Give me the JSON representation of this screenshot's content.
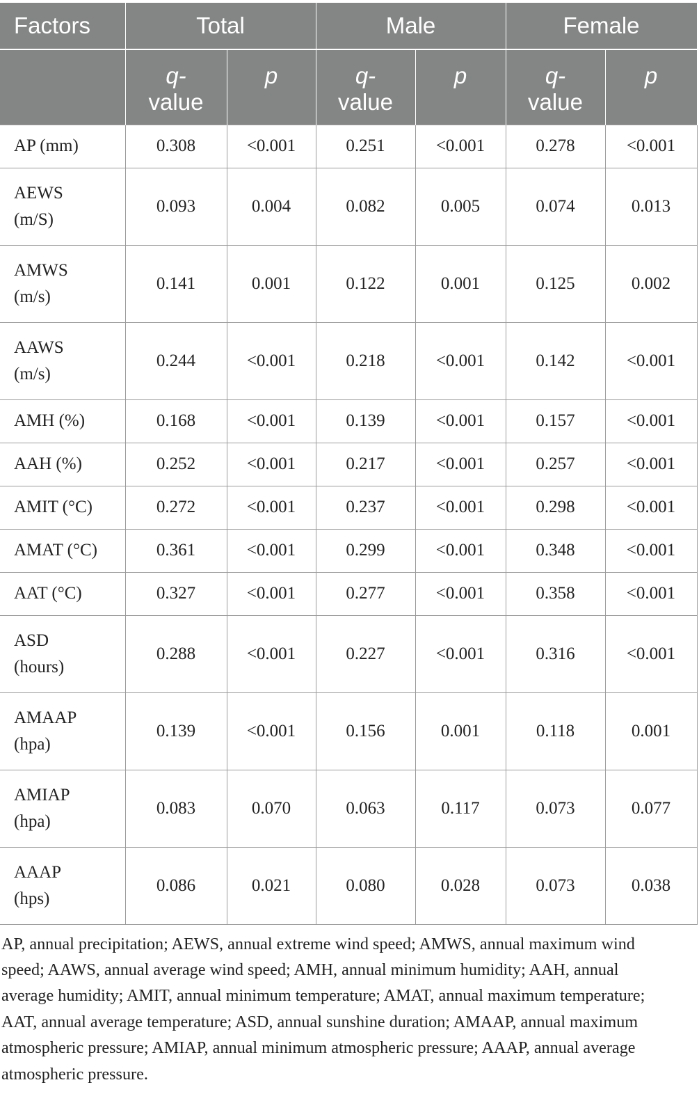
{
  "header": {
    "factors": "Factors",
    "groups": [
      "Total",
      "Male",
      "Female"
    ],
    "q_value_line1": "q-",
    "q_value_line2": "value",
    "p": "p"
  },
  "rows": [
    {
      "factor_line1": "AP (mm)",
      "factor_line2": "",
      "values": [
        "0.308",
        "<0.001",
        "0.251",
        "<0.001",
        "0.278",
        "<0.001"
      ]
    },
    {
      "factor_line1": "AEWS",
      "factor_line2": "(m/S)",
      "values": [
        "0.093",
        "0.004",
        "0.082",
        "0.005",
        "0.074",
        "0.013"
      ]
    },
    {
      "factor_line1": "AMWS",
      "factor_line2": "(m/s)",
      "values": [
        "0.141",
        "0.001",
        "0.122",
        "0.001",
        "0.125",
        "0.002"
      ]
    },
    {
      "factor_line1": "AAWS",
      "factor_line2": "(m/s)",
      "values": [
        "0.244",
        "<0.001",
        "0.218",
        "<0.001",
        "0.142",
        "<0.001"
      ]
    },
    {
      "factor_line1": "AMH (%)",
      "factor_line2": "",
      "values": [
        "0.168",
        "<0.001",
        "0.139",
        "<0.001",
        "0.157",
        "<0.001"
      ]
    },
    {
      "factor_line1": "AAH (%)",
      "factor_line2": "",
      "values": [
        "0.252",
        "<0.001",
        "0.217",
        "<0.001",
        "0.257",
        "<0.001"
      ]
    },
    {
      "factor_line1": "AMIT (°C)",
      "factor_line2": "",
      "values": [
        "0.272",
        "<0.001",
        "0.237",
        "<0.001",
        "0.298",
        "<0.001"
      ]
    },
    {
      "factor_line1": "AMAT (°C)",
      "factor_line2": "",
      "values": [
        "0.361",
        "<0.001",
        "0.299",
        "<0.001",
        "0.348",
        "<0.001"
      ]
    },
    {
      "factor_line1": "AAT (°C)",
      "factor_line2": "",
      "values": [
        "0.327",
        "<0.001",
        "0.277",
        "<0.001",
        "0.358",
        "<0.001"
      ]
    },
    {
      "factor_line1": "ASD",
      "factor_line2": "(hours)",
      "values": [
        "0.288",
        "<0.001",
        "0.227",
        "<0.001",
        "0.316",
        "<0.001"
      ]
    },
    {
      "factor_line1": "AMAAP",
      "factor_line2": "(hpa)",
      "values": [
        "0.139",
        "<0.001",
        "0.156",
        "0.001",
        "0.118",
        "0.001"
      ]
    },
    {
      "factor_line1": "AMIAP",
      "factor_line2": "(hpa)",
      "values": [
        "0.083",
        "0.070",
        "0.063",
        "0.117",
        "0.073",
        "0.077"
      ]
    },
    {
      "factor_line1": "AAAP",
      "factor_line2": "(hps)",
      "values": [
        "0.086",
        "0.021",
        "0.080",
        "0.028",
        "0.073",
        "0.038"
      ]
    }
  ],
  "footnote": "AP, annual precipitation; AEWS, annual extreme wind speed; AMWS, annual maximum wind speed; AAWS, annual average wind speed; AMH, annual minimum humidity; AAH, annual average humidity; AMIT, annual minimum temperature; AMAT, annual maximum temperature; AAT, annual average temperature; ASD, annual sunshine duration; AMAAP, annual maximum atmospheric pressure; AMIAP, annual minimum atmospheric pressure; AAAP, annual average atmospheric pressure."
}
